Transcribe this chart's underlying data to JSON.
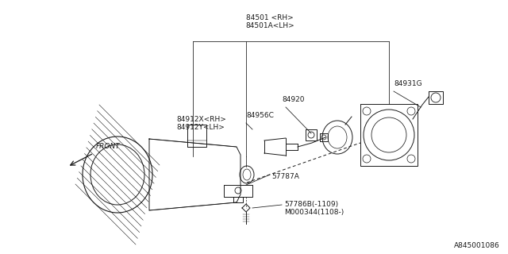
{
  "bg_color": "#ffffff",
  "line_color": "#1a1a1a",
  "text_color": "#1a1a1a",
  "footer": "A845001086",
  "font_size": 6.5,
  "footer_fontsize": 6.5,
  "label_84501": "84501 <RH>\n84501A<LH>",
  "label_84931G": "84931G",
  "label_84920": "84920",
  "label_84956C": "84956C",
  "label_84912X": "84912X<RH>\n84912Y<LH>",
  "label_57787A": "57787A",
  "label_57786B": "57786B(-1109)\nM000344(1108-)",
  "label_FRONT": "FRONT"
}
